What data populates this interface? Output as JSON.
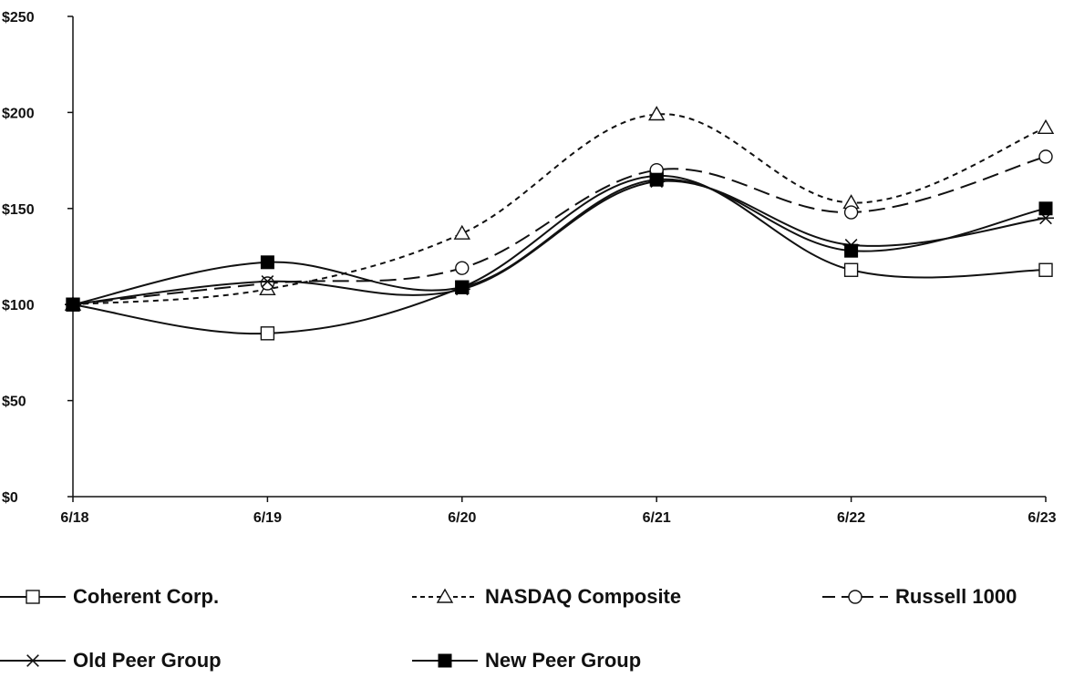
{
  "chart_data": {
    "type": "line",
    "title": "",
    "xlabel": "",
    "ylabel": "",
    "x": [
      "6/18",
      "6/19",
      "6/20",
      "6/21",
      "6/22",
      "6/23"
    ],
    "ylim": [
      0,
      250
    ],
    "yticks": [
      0,
      50,
      100,
      150,
      200,
      250
    ],
    "ytick_labels": [
      "$0",
      "$50",
      "$100",
      "$150",
      "$200",
      "$250"
    ],
    "grid": false,
    "legend_position": "bottom",
    "series": [
      {
        "name": "Coherent Corp.",
        "values": [
          100,
          85,
          109,
          167,
          118,
          118
        ],
        "dash": "solid",
        "marker": "square-open",
        "color": "#111111"
      },
      {
        "name": "NASDAQ Composite",
        "values": [
          100,
          108,
          137,
          199,
          153,
          192
        ],
        "dash": "short",
        "marker": "triangle-open",
        "color": "#111111"
      },
      {
        "name": "Russell 1000",
        "values": [
          100,
          111,
          119,
          170,
          148,
          177
        ],
        "dash": "long",
        "marker": "circle-open",
        "color": "#111111"
      },
      {
        "name": "Old Peer Group",
        "values": [
          100,
          112,
          108,
          164,
          131,
          145
        ],
        "dash": "solid",
        "marker": "asterisk",
        "color": "#111111"
      },
      {
        "name": "New Peer Group",
        "values": [
          100,
          122,
          109,
          165,
          128,
          150
        ],
        "dash": "solid",
        "marker": "square-filled",
        "color": "#111111"
      }
    ]
  }
}
